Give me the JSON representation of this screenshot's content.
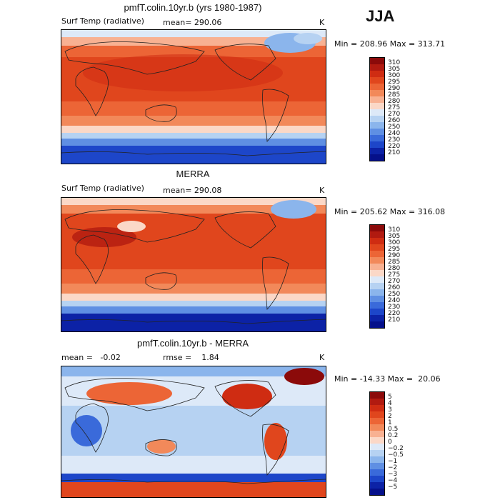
{
  "season": "JJA",
  "panels": [
    {
      "title": "pmfT.colin.10yr.b (yrs 1980-1987)",
      "left_label": "Surf Temp (radiative)",
      "mean_label": "mean= 290.06",
      "unit": "K",
      "minmax": "Min = 208.96 Max = 313.71"
    },
    {
      "title": "MERRA",
      "left_label": "Surf Temp (radiative)",
      "mean_label": "mean= 290.08",
      "unit": "K",
      "minmax": "Min = 205.62 Max = 316.08"
    },
    {
      "title": "pmfT.colin.10yr.b - MERRA",
      "left_label": "mean =   -0.02",
      "mean_label": "rmse =    1.84",
      "unit": "K",
      "minmax": "Min = -14.33 Max =  20.06"
    }
  ],
  "chart_data": [
    {
      "type": "heatmap",
      "title": "pmfT.colin.10yr.b (yrs 1980-1987)",
      "variable": "Surf Temp (radiative)",
      "units": "K",
      "mean": 290.06,
      "min": 208.96,
      "max": 313.71,
      "levels": [
        "310",
        "305",
        "300",
        "295",
        "290",
        "285",
        "280",
        "275",
        "270",
        "260",
        "250",
        "240",
        "230",
        "220",
        "210"
      ],
      "colors": [
        "#8b0a0a",
        "#b11a10",
        "#cf2c12",
        "#e0461d",
        "#ec6536",
        "#f2895a",
        "#f8b192",
        "#fbd8c7",
        "#dde9f8",
        "#b6d2f2",
        "#8bb5ec",
        "#5f8fe3",
        "#3a6ada",
        "#1d46c9",
        "#0c22a6",
        "#05108a"
      ]
    },
    {
      "type": "heatmap",
      "title": "MERRA",
      "variable": "Surf Temp (radiative)",
      "units": "K",
      "mean": 290.08,
      "min": 205.62,
      "max": 316.08,
      "levels": [
        "310",
        "305",
        "300",
        "295",
        "290",
        "285",
        "280",
        "275",
        "270",
        "260",
        "250",
        "240",
        "230",
        "220",
        "210"
      ],
      "colors": [
        "#8b0a0a",
        "#b11a10",
        "#cf2c12",
        "#e0461d",
        "#ec6536",
        "#f2895a",
        "#f8b192",
        "#fbd8c7",
        "#dde9f8",
        "#b6d2f2",
        "#8bb5ec",
        "#5f8fe3",
        "#3a6ada",
        "#1d46c9",
        "#0c22a6",
        "#05108a"
      ]
    },
    {
      "type": "heatmap",
      "title": "pmfT.colin.10yr.b - MERRA",
      "units": "K",
      "mean": -0.02,
      "rmse": 1.84,
      "min": -14.33,
      "max": 20.06,
      "levels": [
        "5",
        "4",
        "3",
        "2",
        "1",
        "0.5",
        "0.2",
        "0",
        "−0.2",
        "−0.5",
        "−1",
        "−2",
        "−3",
        "−4",
        "−5"
      ],
      "colors": [
        "#8b0a0a",
        "#b11a10",
        "#cf2c12",
        "#e0461d",
        "#ec6536",
        "#f2895a",
        "#f8b192",
        "#fbd8c7",
        "#dde9f8",
        "#b6d2f2",
        "#8bb5ec",
        "#5f8fe3",
        "#3a6ada",
        "#1d46c9",
        "#0c22a6",
        "#05108a"
      ]
    }
  ]
}
